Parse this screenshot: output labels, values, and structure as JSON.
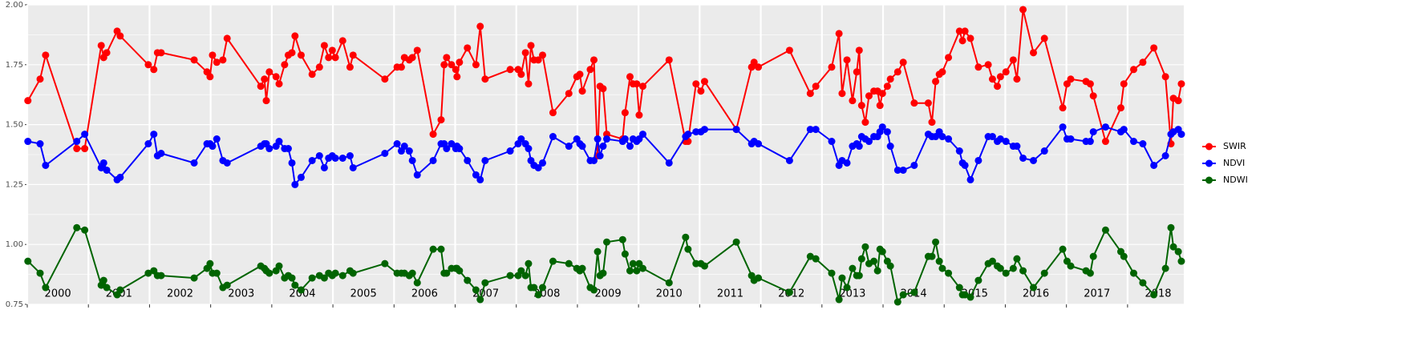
{
  "chart_data": {
    "type": "line",
    "x": [
      2000.01,
      2000.21,
      2000.3,
      2000.81,
      2000.94,
      2001.21,
      2001.25,
      2001.3,
      2001.47,
      2001.52,
      2001.98,
      2002.07,
      2002.13,
      2002.19,
      2002.73,
      2002.94,
      2002.99,
      2003.03,
      2003.1,
      2003.2,
      2003.27,
      2003.82,
      2003.88,
      2003.91,
      2003.96,
      2004.07,
      2004.12,
      2004.21,
      2004.27,
      2004.33,
      2004.38,
      2004.48,
      2004.66,
      2004.78,
      2004.86,
      2004.93,
      2004.99,
      2005.04,
      2005.16,
      2005.28,
      2005.33,
      2005.85,
      2006.05,
      2006.12,
      2006.17,
      2006.25,
      2006.3,
      2006.38,
      2006.64,
      2006.77,
      2006.82,
      2006.86,
      2006.94,
      2007.01,
      2007.03,
      2007.07,
      2007.2,
      2007.34,
      2007.41,
      2007.49,
      2007.9,
      2008.03,
      2008.08,
      2008.15,
      2008.2,
      2008.24,
      2008.29,
      2008.36,
      2008.43,
      2008.6,
      2008.86,
      2008.99,
      2009.04,
      2009.08,
      2009.21,
      2009.27,
      2009.33,
      2009.37,
      2009.42,
      2009.48,
      2009.74,
      2009.78,
      2009.86,
      2009.91,
      2009.97,
      2010.01,
      2010.07,
      2010.5,
      2010.77,
      2010.81,
      2010.94,
      2011.02,
      2011.08,
      2011.6,
      2011.85,
      2011.89,
      2011.96,
      2012.47,
      2012.81,
      2012.9,
      2013.16,
      2013.28,
      2013.33,
      2013.41,
      2013.5,
      2013.57,
      2013.61,
      2013.65,
      2013.71,
      2013.77,
      2013.85,
      2013.91,
      2013.95,
      2013.99,
      2014.07,
      2014.12,
      2014.24,
      2014.33,
      2014.51,
      2014.74,
      2014.8,
      2014.86,
      2014.92,
      2014.97,
      2015.07,
      2015.25,
      2015.3,
      2015.34,
      2015.43,
      2015.56,
      2015.72,
      2015.79,
      2015.87,
      2015.92,
      2016.01,
      2016.13,
      2016.19,
      2016.29,
      2016.46,
      2016.64,
      2016.94,
      2017.01,
      2017.07,
      2017.32,
      2017.39,
      2017.44,
      2017.64,
      2017.89,
      2017.94,
      2018.1,
      2018.25,
      2018.43,
      2018.62,
      2018.71,
      2018.75,
      2018.83,
      2018.88
    ],
    "series": [
      {
        "name": "SWIR",
        "color": "#ff0000",
        "values": [
          1.6,
          1.69,
          1.79,
          1.4,
          1.4,
          1.83,
          1.78,
          1.8,
          1.89,
          1.87,
          1.75,
          1.73,
          1.8,
          1.8,
          1.77,
          1.72,
          1.7,
          1.79,
          1.76,
          1.77,
          1.86,
          1.66,
          1.69,
          1.6,
          1.72,
          1.7,
          1.67,
          1.75,
          1.79,
          1.8,
          1.87,
          1.79,
          1.71,
          1.74,
          1.83,
          1.78,
          1.81,
          1.78,
          1.85,
          1.74,
          1.79,
          1.69,
          1.74,
          1.74,
          1.78,
          1.77,
          1.78,
          1.81,
          1.46,
          1.52,
          1.75,
          1.78,
          1.75,
          1.73,
          1.7,
          1.76,
          1.82,
          1.75,
          1.91,
          1.69,
          1.73,
          1.73,
          1.71,
          1.8,
          1.67,
          1.83,
          1.77,
          1.77,
          1.79,
          1.55,
          1.63,
          1.7,
          1.71,
          1.64,
          1.73,
          1.77,
          1.37,
          1.66,
          1.65,
          1.46,
          1.44,
          1.55,
          1.7,
          1.67,
          1.67,
          1.54,
          1.66,
          1.77,
          1.43,
          1.43,
          1.67,
          1.64,
          1.68,
          1.48,
          1.74,
          1.76,
          1.74,
          1.81,
          1.63,
          1.66,
          1.74,
          1.88,
          1.63,
          1.77,
          1.6,
          1.72,
          1.81,
          1.58,
          1.51,
          1.62,
          1.64,
          1.64,
          1.58,
          1.63,
          1.66,
          1.69,
          1.72,
          1.76,
          1.59,
          1.59,
          1.51,
          1.68,
          1.71,
          1.72,
          1.78,
          1.89,
          1.85,
          1.89,
          1.86,
          1.74,
          1.75,
          1.69,
          1.66,
          1.7,
          1.72,
          1.77,
          1.69,
          1.98,
          1.8,
          1.86,
          1.57,
          1.67,
          1.69,
          1.68,
          1.67,
          1.62,
          1.43,
          1.57,
          1.67,
          1.73,
          1.76,
          1.82,
          1.7,
          1.42,
          1.61,
          1.6,
          1.67
        ]
      },
      {
        "name": "NDVI",
        "color": "#0000ff",
        "values": [
          1.43,
          1.42,
          1.33,
          1.43,
          1.46,
          1.32,
          1.34,
          1.31,
          1.27,
          1.28,
          1.42,
          1.46,
          1.37,
          1.38,
          1.34,
          1.42,
          1.42,
          1.41,
          1.44,
          1.35,
          1.34,
          1.41,
          1.42,
          1.42,
          1.4,
          1.41,
          1.43,
          1.4,
          1.4,
          1.34,
          1.25,
          1.28,
          1.35,
          1.37,
          1.32,
          1.36,
          1.37,
          1.36,
          1.36,
          1.37,
          1.32,
          1.38,
          1.42,
          1.39,
          1.41,
          1.39,
          1.35,
          1.29,
          1.35,
          1.42,
          1.42,
          1.4,
          1.42,
          1.4,
          1.41,
          1.4,
          1.35,
          1.29,
          1.27,
          1.35,
          1.39,
          1.42,
          1.44,
          1.42,
          1.4,
          1.35,
          1.33,
          1.32,
          1.34,
          1.45,
          1.41,
          1.44,
          1.42,
          1.41,
          1.35,
          1.35,
          1.44,
          1.37,
          1.41,
          1.44,
          1.43,
          1.44,
          1.41,
          1.44,
          1.43,
          1.44,
          1.46,
          1.34,
          1.45,
          1.46,
          1.47,
          1.47,
          1.48,
          1.48,
          1.42,
          1.43,
          1.42,
          1.35,
          1.48,
          1.48,
          1.43,
          1.33,
          1.35,
          1.34,
          1.41,
          1.42,
          1.41,
          1.45,
          1.44,
          1.43,
          1.45,
          1.45,
          1.47,
          1.49,
          1.47,
          1.41,
          1.31,
          1.31,
          1.33,
          1.46,
          1.45,
          1.45,
          1.47,
          1.45,
          1.44,
          1.39,
          1.34,
          1.33,
          1.27,
          1.35,
          1.45,
          1.45,
          1.43,
          1.44,
          1.43,
          1.41,
          1.41,
          1.36,
          1.35,
          1.39,
          1.49,
          1.44,
          1.44,
          1.43,
          1.43,
          1.47,
          1.49,
          1.47,
          1.48,
          1.43,
          1.42,
          1.33,
          1.37,
          1.46,
          1.47,
          1.48,
          1.46
        ]
      },
      {
        "name": "NDWI",
        "color": "#006400",
        "values": [
          0.93,
          0.88,
          0.82,
          1.07,
          1.06,
          0.83,
          0.85,
          0.82,
          0.79,
          0.81,
          0.88,
          0.89,
          0.87,
          0.87,
          0.86,
          0.9,
          0.92,
          0.88,
          0.88,
          0.82,
          0.83,
          0.91,
          0.9,
          0.89,
          0.88,
          0.89,
          0.91,
          0.86,
          0.87,
          0.86,
          0.83,
          0.81,
          0.86,
          0.87,
          0.86,
          0.88,
          0.87,
          0.88,
          0.87,
          0.89,
          0.88,
          0.92,
          0.88,
          0.88,
          0.88,
          0.87,
          0.88,
          0.84,
          0.98,
          0.98,
          0.88,
          0.88,
          0.9,
          0.9,
          0.9,
          0.89,
          0.85,
          0.81,
          0.77,
          0.84,
          0.87,
          0.87,
          0.89,
          0.87,
          0.92,
          0.82,
          0.82,
          0.79,
          0.82,
          0.93,
          0.92,
          0.9,
          0.89,
          0.9,
          0.82,
          0.81,
          0.97,
          0.87,
          0.88,
          1.01,
          1.02,
          0.96,
          0.89,
          0.92,
          0.89,
          0.92,
          0.9,
          0.84,
          1.03,
          0.98,
          0.92,
          0.92,
          0.91,
          1.01,
          0.87,
          0.85,
          0.86,
          0.8,
          0.95,
          0.94,
          0.88,
          0.77,
          0.86,
          0.82,
          0.9,
          0.87,
          0.87,
          0.94,
          0.99,
          0.92,
          0.93,
          0.89,
          0.98,
          0.97,
          0.93,
          0.91,
          0.76,
          0.79,
          0.8,
          0.95,
          0.95,
          1.01,
          0.93,
          0.9,
          0.88,
          0.82,
          0.79,
          0.79,
          0.78,
          0.85,
          0.92,
          0.93,
          0.91,
          0.9,
          0.88,
          0.9,
          0.94,
          0.89,
          0.82,
          0.88,
          0.98,
          0.93,
          0.91,
          0.89,
          0.88,
          0.95,
          1.06,
          0.97,
          0.95,
          0.88,
          0.84,
          0.79,
          0.9,
          1.07,
          0.99,
          0.97,
          0.93
        ]
      }
    ],
    "xlim": [
      2000,
      2018.92
    ],
    "xticks": [
      2000,
      2001,
      2002,
      2003,
      2004,
      2005,
      2006,
      2007,
      2008,
      2009,
      2010,
      2011,
      2012,
      2013,
      2014,
      2015,
      2016,
      2017,
      2018
    ],
    "ylim": [
      0.75,
      2.0
    ],
    "yticks": [
      {
        "value": 0.75,
        "label": "0.75"
      },
      {
        "value": 1.0,
        "label": "1.00"
      },
      {
        "value": 1.25,
        "label": "1.25"
      },
      {
        "value": 1.5,
        "label": "1.50"
      },
      {
        "value": 1.75,
        "label": "1.75"
      },
      {
        "value": 2.0,
        "label": "2.00"
      }
    ],
    "grid": true,
    "legend": "right"
  }
}
